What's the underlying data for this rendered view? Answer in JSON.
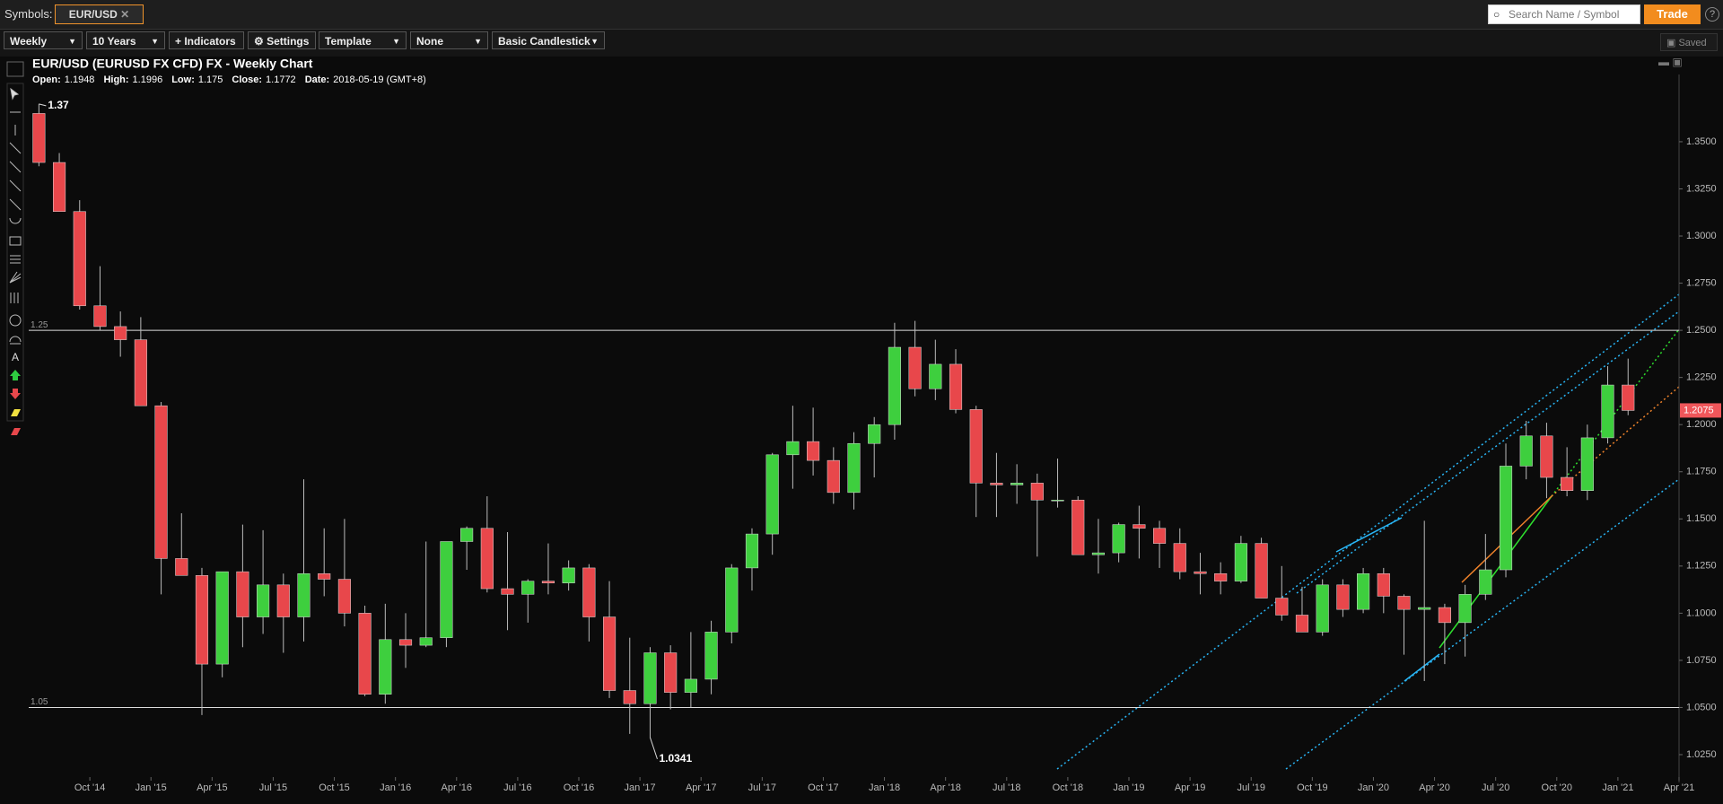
{
  "toolbar": {
    "symbols_label": "Symbols:",
    "symbol": "EUR/USD",
    "search_placeholder": "Search Name / Symbol",
    "trade": "Trade",
    "interval": "Weekly",
    "range": "10 Years",
    "indicators": "Indicators",
    "settings": "Settings",
    "template": "Template",
    "overlay": "None",
    "style": "Basic Candlestick",
    "saved": "Saved"
  },
  "chart_data": {
    "type": "candlestick",
    "title": "EUR/USD (EURUSD FX CFD) FX - Weekly Chart",
    "info": [
      {
        "label": "Open:",
        "value": 1.1948
      },
      {
        "label": "High:",
        "value": 1.1996
      },
      {
        "label": "Low:",
        "value": 1.175
      },
      {
        "label": "Close:",
        "value": 1.1772
      },
      {
        "label": "Date:",
        "value": "2018-05-19 (GMT+8)"
      }
    ],
    "x": [
      "2014-07",
      "2014-08",
      "2014-09",
      "2014-10",
      "2014-11",
      "2014-12",
      "2015-01",
      "2015-02",
      "2015-03",
      "2015-04",
      "2015-05",
      "2015-06",
      "2015-07",
      "2015-08",
      "2015-09",
      "2015-10",
      "2015-11",
      "2015-12",
      "2016-01",
      "2016-02",
      "2016-03",
      "2016-04",
      "2016-05",
      "2016-06",
      "2016-07",
      "2016-08",
      "2016-09",
      "2016-10",
      "2016-11",
      "2016-12",
      "2017-01",
      "2017-02",
      "2017-03",
      "2017-04",
      "2017-05",
      "2017-06",
      "2017-07",
      "2017-08",
      "2017-09",
      "2017-10",
      "2017-11",
      "2017-12",
      "2018-01",
      "2018-02",
      "2018-03",
      "2018-04",
      "2018-05",
      "2018-06",
      "2018-07",
      "2018-08",
      "2018-09",
      "2018-10",
      "2018-11",
      "2018-12",
      "2019-01",
      "2019-02",
      "2019-03",
      "2019-04",
      "2019-05",
      "2019-06",
      "2019-07",
      "2019-08",
      "2019-09",
      "2019-10",
      "2019-11",
      "2019-12",
      "2020-01",
      "2020-02",
      "2020-03",
      "2020-04",
      "2020-05",
      "2020-06",
      "2020-07",
      "2020-08",
      "2020-09",
      "2020-10",
      "2020-11",
      "2020-12",
      "2021-01"
    ],
    "open": [
      1.365,
      1.339,
      1.313,
      1.263,
      1.252,
      1.245,
      1.21,
      1.129,
      1.12,
      1.073,
      1.122,
      1.098,
      1.115,
      1.098,
      1.121,
      1.118,
      1.1,
      1.057,
      1.086,
      1.083,
      1.087,
      1.138,
      1.145,
      1.113,
      1.11,
      1.117,
      1.116,
      1.124,
      1.098,
      1.059,
      1.052,
      1.079,
      1.058,
      1.065,
      1.09,
      1.124,
      1.142,
      1.184,
      1.191,
      1.181,
      1.164,
      1.19,
      1.2,
      1.241,
      1.219,
      1.232,
      1.208,
      1.169,
      1.168,
      1.169,
      1.16,
      1.16,
      1.131,
      1.132,
      1.147,
      1.145,
      1.137,
      1.122,
      1.121,
      1.117,
      1.137,
      1.108,
      1.099,
      1.09,
      1.115,
      1.102,
      1.121,
      1.109,
      1.102,
      1.103,
      1.095,
      1.11,
      1.123,
      1.178,
      1.194,
      1.172,
      1.165,
      1.193,
      1.221
    ],
    "high": [
      1.37,
      1.344,
      1.319,
      1.284,
      1.26,
      1.257,
      1.212,
      1.153,
      1.124,
      1.122,
      1.147,
      1.144,
      1.121,
      1.171,
      1.145,
      1.15,
      1.104,
      1.105,
      1.1,
      1.138,
      1.138,
      1.146,
      1.162,
      1.143,
      1.118,
      1.137,
      1.128,
      1.126,
      1.117,
      1.087,
      1.082,
      1.083,
      1.09,
      1.096,
      1.126,
      1.145,
      1.185,
      1.21,
      1.209,
      1.188,
      1.196,
      1.204,
      1.254,
      1.255,
      1.245,
      1.24,
      1.21,
      1.185,
      1.179,
      1.174,
      1.182,
      1.162,
      1.15,
      1.148,
      1.157,
      1.149,
      1.145,
      1.132,
      1.127,
      1.141,
      1.14,
      1.125,
      1.114,
      1.118,
      1.118,
      1.124,
      1.124,
      1.11,
      1.149,
      1.105,
      1.115,
      1.142,
      1.19,
      1.202,
      1.201,
      1.188,
      1.2,
      1.231,
      1.235
    ],
    "low": [
      1.337,
      1.313,
      1.261,
      1.25,
      1.236,
      1.21,
      1.11,
      1.122,
      1.046,
      1.066,
      1.082,
      1.089,
      1.079,
      1.085,
      1.109,
      1.093,
      1.056,
      1.052,
      1.071,
      1.082,
      1.082,
      1.123,
      1.111,
      1.091,
      1.095,
      1.11,
      1.112,
      1.085,
      1.055,
      1.036,
      1.034,
      1.049,
      1.05,
      1.057,
      1.084,
      1.112,
      1.131,
      1.166,
      1.173,
      1.158,
      1.155,
      1.172,
      1.192,
      1.215,
      1.213,
      1.206,
      1.151,
      1.151,
      1.158,
      1.13,
      1.156,
      1.131,
      1.121,
      1.127,
      1.129,
      1.124,
      1.118,
      1.11,
      1.11,
      1.116,
      1.108,
      1.096,
      1.09,
      1.088,
      1.098,
      1.1,
      1.1,
      1.078,
      1.064,
      1.073,
      1.077,
      1.107,
      1.119,
      1.171,
      1.161,
      1.162,
      1.16,
      1.19,
      1.205
    ],
    "close": [
      1.339,
      1.313,
      1.263,
      1.252,
      1.245,
      1.21,
      1.129,
      1.12,
      1.073,
      1.122,
      1.098,
      1.115,
      1.098,
      1.121,
      1.118,
      1.1,
      1.057,
      1.086,
      1.083,
      1.087,
      1.138,
      1.145,
      1.113,
      1.11,
      1.117,
      1.116,
      1.124,
      1.098,
      1.059,
      1.052,
      1.079,
      1.058,
      1.065,
      1.09,
      1.124,
      1.142,
      1.184,
      1.191,
      1.181,
      1.164,
      1.19,
      1.2,
      1.241,
      1.219,
      1.232,
      1.208,
      1.169,
      1.168,
      1.169,
      1.16,
      1.16,
      1.131,
      1.132,
      1.147,
      1.145,
      1.137,
      1.122,
      1.121,
      1.117,
      1.137,
      1.108,
      1.099,
      1.09,
      1.115,
      1.102,
      1.121,
      1.109,
      1.102,
      1.103,
      1.095,
      1.11,
      1.123,
      1.178,
      1.194,
      1.172,
      1.165,
      1.193,
      1.221,
      1.2075
    ],
    "up_color": "#3ecf3e",
    "down_color": "#e8474b",
    "xlim": [
      "2014-07",
      "2021-04"
    ],
    "xticks": [
      {
        "value": "2014-10",
        "label": "Oct '14"
      },
      {
        "value": "2015-01",
        "label": "Jan '15"
      },
      {
        "value": "2015-04",
        "label": "Apr '15"
      },
      {
        "value": "2015-07",
        "label": "Jul '15"
      },
      {
        "value": "2015-10",
        "label": "Oct '15"
      },
      {
        "value": "2016-01",
        "label": "Jan '16"
      },
      {
        "value": "2016-04",
        "label": "Apr '16"
      },
      {
        "value": "2016-07",
        "label": "Jul '16"
      },
      {
        "value": "2016-10",
        "label": "Oct '16"
      },
      {
        "value": "2017-01",
        "label": "Jan '17"
      },
      {
        "value": "2017-04",
        "label": "Apr '17"
      },
      {
        "value": "2017-07",
        "label": "Jul '17"
      },
      {
        "value": "2017-10",
        "label": "Oct '17"
      },
      {
        "value": "2018-01",
        "label": "Jan '18"
      },
      {
        "value": "2018-04",
        "label": "Apr '18"
      },
      {
        "value": "2018-07",
        "label": "Jul '18"
      },
      {
        "value": "2018-10",
        "label": "Oct '18"
      },
      {
        "value": "2019-01",
        "label": "Jan '19"
      },
      {
        "value": "2019-04",
        "label": "Apr '19"
      },
      {
        "value": "2019-07",
        "label": "Jul '19"
      },
      {
        "value": "2019-10",
        "label": "Oct '19"
      },
      {
        "value": "2020-01",
        "label": "Jan '20"
      },
      {
        "value": "2020-04",
        "label": "Apr '20"
      },
      {
        "value": "2020-07",
        "label": "Jul '20"
      },
      {
        "value": "2020-10",
        "label": "Oct '20"
      },
      {
        "value": "2021-01",
        "label": "Jan '21"
      },
      {
        "value": "2021-04",
        "label": "Apr '21"
      }
    ],
    "ylim": [
      1.015,
      1.3947
    ],
    "yticks": [
      {
        "value": 1.025,
        "label": "1.0250"
      },
      {
        "value": 1.05,
        "label": "1.0500"
      },
      {
        "value": 1.075,
        "label": "1.0750"
      },
      {
        "value": 1.1,
        "label": "1.1000"
      },
      {
        "value": 1.125,
        "label": "1.1250"
      },
      {
        "value": 1.15,
        "label": "1.1500"
      },
      {
        "value": 1.175,
        "label": "1.1750"
      },
      {
        "value": 1.2,
        "label": "1.2000"
      },
      {
        "value": 1.225,
        "label": "1.2250"
      },
      {
        "value": 1.25,
        "label": "1.2500"
      },
      {
        "value": 1.275,
        "label": "1.2750"
      },
      {
        "value": 1.3,
        "label": "1.3000"
      },
      {
        "value": 1.325,
        "label": "1.3250"
      },
      {
        "value": 1.35,
        "label": "1.3500"
      }
    ],
    "hlines": [
      1.25,
      1.05
    ],
    "annotations": [
      {
        "x": "2014-07",
        "y": 1.37
      },
      {
        "x": "2017-01",
        "y": 1.0341
      }
    ],
    "last_price": 1.2075
  }
}
